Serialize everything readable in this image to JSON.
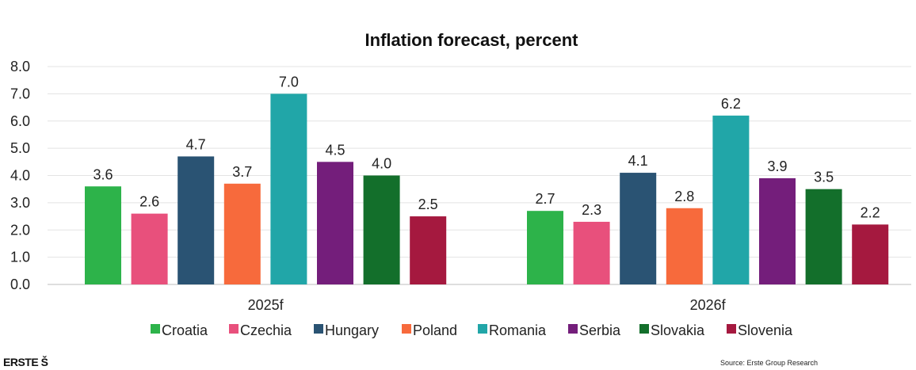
{
  "chart_data": {
    "type": "bar",
    "title": "Inflation forecast, percent",
    "categories": [
      "2025f",
      "2026f"
    ],
    "ylim": [
      0,
      8
    ],
    "yticks": [
      "0.0",
      "1.0",
      "2.0",
      "3.0",
      "4.0",
      "5.0",
      "6.0",
      "7.0",
      "8.0"
    ],
    "grid": true,
    "legend_position": "bottom",
    "series": [
      {
        "name": "Croatia",
        "color": "#2db34a",
        "values": [
          3.6,
          2.7
        ],
        "labels": [
          "3.6",
          "2.7"
        ]
      },
      {
        "name": "Czechia",
        "color": "#e8507c",
        "values": [
          2.6,
          2.3
        ],
        "labels": [
          "2.6",
          "2.3"
        ]
      },
      {
        "name": "Hungary",
        "color": "#2a5373",
        "values": [
          4.7,
          4.1
        ],
        "labels": [
          "4.7",
          "4.1"
        ]
      },
      {
        "name": "Poland",
        "color": "#f76a3c",
        "values": [
          3.7,
          2.8
        ],
        "labels": [
          "3.7",
          "2.8"
        ]
      },
      {
        "name": "Romania",
        "color": "#21a6a8",
        "values": [
          7.0,
          6.2
        ],
        "labels": [
          "7.0",
          "6.2"
        ]
      },
      {
        "name": "Serbia",
        "color": "#741e7b",
        "values": [
          4.5,
          3.9
        ],
        "labels": [
          "4.5",
          "3.9"
        ]
      },
      {
        "name": "Slovakia",
        "color": "#136f2b",
        "values": [
          4.0,
          3.5
        ],
        "labels": [
          "4.0",
          "3.5"
        ]
      },
      {
        "name": "Slovenia",
        "color": "#a5193f",
        "values": [
          2.5,
          2.2
        ],
        "labels": [
          "2.5",
          "2.2"
        ]
      }
    ]
  },
  "footer": {
    "logo_text": "ERSTE",
    "logo_mark": "Š",
    "source": "Source: Erste Group Research"
  }
}
